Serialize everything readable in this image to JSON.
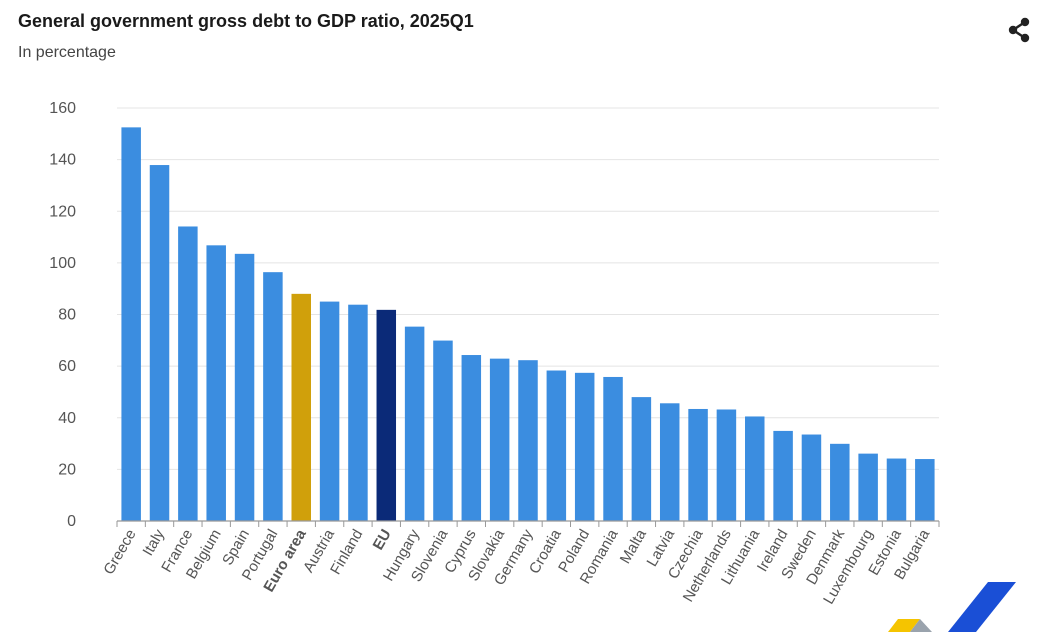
{
  "header": {
    "title": "General government gross debt to GDP ratio, 2025Q1",
    "subtitle": "In percentage",
    "share_icon": "share-icon"
  },
  "colors": {
    "default": "#3b8de0",
    "euro_area": "#d0a00b",
    "eu": "#0b2a78",
    "grid": "#e4e4e4",
    "axis": "#999999"
  },
  "chart_data": {
    "type": "bar",
    "title": "General government gross debt to GDP ratio, 2025Q1",
    "subtitle": "In percentage",
    "ylim": [
      0,
      160
    ],
    "yticks": [
      "0",
      "20",
      "40",
      "60",
      "80",
      "100",
      "120",
      "140",
      "160"
    ],
    "grid": true,
    "categories": [
      "Greece",
      "Italy",
      "France",
      "Belgium",
      "Spain",
      "Portugal",
      "Euro area",
      "Austria",
      "Finland",
      "EU",
      "Hungary",
      "Slovenia",
      "Cyprus",
      "Slovakia",
      "Germany",
      "Croatia",
      "Poland",
      "Romania",
      "Malta",
      "Latvia",
      "Czechia",
      "Netherlands",
      "Lithuania",
      "Ireland",
      "Sweden",
      "Denmark",
      "Luxembourg",
      "Estonia",
      "Bulgaria"
    ],
    "values": [
      152.5,
      137.9,
      114.1,
      106.8,
      103.5,
      96.4,
      88.0,
      85.0,
      83.8,
      81.8,
      75.3,
      69.9,
      64.3,
      62.9,
      62.3,
      58.3,
      57.4,
      55.8,
      48.0,
      45.6,
      43.4,
      43.2,
      40.5,
      34.9,
      33.5,
      29.9,
      26.1,
      24.2,
      24.0
    ],
    "highlight": {
      "Euro area": "euro_area",
      "EU": "eu"
    },
    "bold_labels": [
      "Euro area",
      "EU"
    ]
  }
}
